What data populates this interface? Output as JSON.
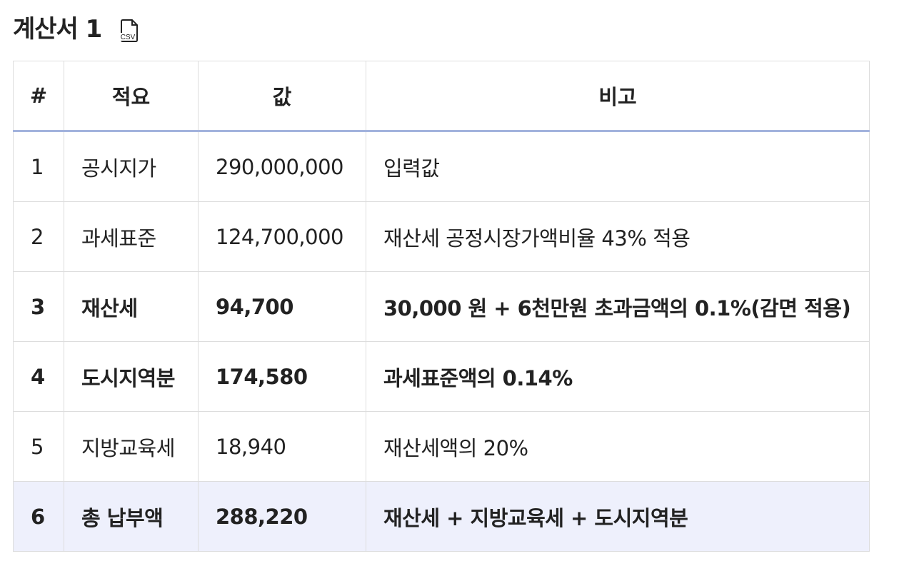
{
  "header": {
    "title": "계산서 1",
    "csv_icon": "csv-file-icon",
    "csv_label": "CSV"
  },
  "table": {
    "columns": [
      "#",
      "적요",
      "값",
      "비고"
    ],
    "rows": [
      {
        "no": "1",
        "item": "공시지가",
        "value": "290,000,000",
        "note": "입력값",
        "bold": false
      },
      {
        "no": "2",
        "item": "과세표준",
        "value": "124,700,000",
        "note": "재산세 공정시장가액비율 43% 적용",
        "bold": false
      },
      {
        "no": "3",
        "item": "재산세",
        "value": "94,700",
        "note": "30,000 원 + 6천만원 초과금액의 0.1%(감면 적용)",
        "bold": true
      },
      {
        "no": "4",
        "item": "도시지역분",
        "value": "174,580",
        "note": "과세표준액의 0.14%",
        "bold": true
      },
      {
        "no": "5",
        "item": "지방교육세",
        "value": "18,940",
        "note": "재산세액의 20%",
        "bold": false
      },
      {
        "no": "6",
        "item": "총 납부액",
        "value": "288,220",
        "note": "재산세 + 지방교육세 + 도시지역분",
        "bold": true
      }
    ]
  },
  "colors": {
    "header_underline": "#a3b3dd",
    "total_row_bg": "#eef0fc",
    "border": "#dddddd"
  }
}
